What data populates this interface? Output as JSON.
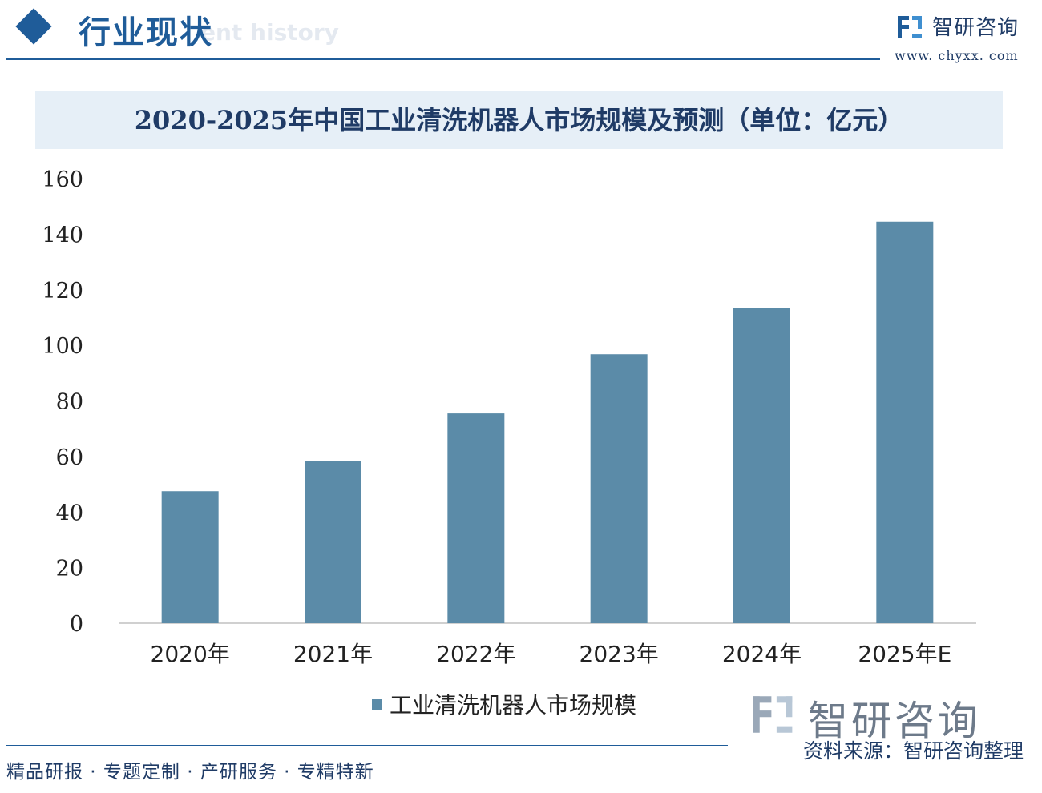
{
  "header": {
    "title": "行业现状",
    "subtitle_ghost": "ent history",
    "logo_text": "智研咨询",
    "logo_url": "www. chyxx. com"
  },
  "footer": {
    "tagline": "精品研报 · 专题定制 · 产研服务 · 专精特新",
    "logo_text": "智研咨询",
    "source": "资料来源：智研咨询整理"
  },
  "colors": {
    "bar": "#5b8ba8",
    "brand": "#1f5c99",
    "title_band": "#e6eff7"
  },
  "chart_data": {
    "type": "bar",
    "title": "2020-2025年中国工业清洗机器人市场规模及预测（单位：亿元）",
    "categories": [
      "2020年",
      "2021年",
      "2022年",
      "2023年",
      "2024年",
      "2025年E"
    ],
    "series": [
      {
        "name": "工业清洗机器人市场规模",
        "values": [
          47.5,
          58.3,
          75.5,
          96.8,
          113.5,
          144.5
        ]
      }
    ],
    "ylim": [
      0,
      160
    ],
    "yticks": [
      0,
      20,
      40,
      60,
      80,
      100,
      120,
      140,
      160
    ],
    "grid": false,
    "legend_position": "bottom"
  }
}
